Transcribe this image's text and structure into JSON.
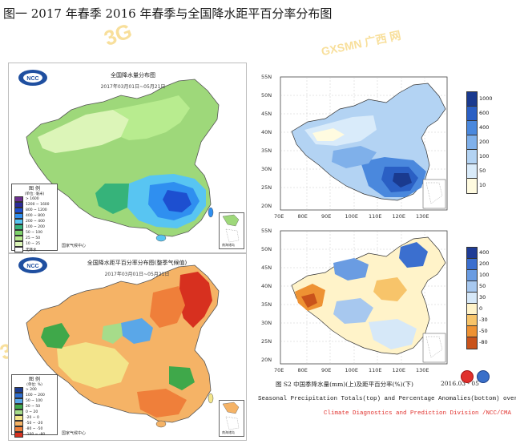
{
  "figure_title": "图一   2017 年春季 2016 年春季与全国降水距平百分率分布图",
  "watermarks": [
    "3G",
    "GXSMN 广西 网"
  ],
  "panel_a": {
    "logo": "NCC",
    "title": "全国降水量分布图",
    "date": "2017年03月01日~05月21日",
    "legend_title": "图  例",
    "legend_unit": "(单位: 毫米)",
    "legend": [
      {
        "label": "> 1600",
        "color": "#6b2f8f"
      },
      {
        "label": "1200 ~ 1600",
        "color": "#2b2c9a"
      },
      {
        "label": "800 ~ 1200",
        "color": "#1d4fd0"
      },
      {
        "label": "400 ~ 800",
        "color": "#2f8ff0"
      },
      {
        "label": "200 ~ 400",
        "color": "#58c5f2"
      },
      {
        "label": "100 ~ 200",
        "color": "#36b37a"
      },
      {
        "label": "50 ~ 100",
        "color": "#7ed36b"
      },
      {
        "label": "25 ~ 50",
        "color": "#b8ec8f"
      },
      {
        "label": "10 ~ 25",
        "color": "#dcf5b8"
      },
      {
        "label": "无降水",
        "color": "#ffffff"
      },
      {
        "label": "资料缺测",
        "color": "#d9d9d9"
      }
    ],
    "footer": "国家气候中心",
    "inset_label": "南海诸岛"
  },
  "panel_b": {
    "logo": "NCC",
    "title": "全国降水距平百分率分布图(整季气候值)",
    "date": "2017年03月01日~05月21日",
    "legend_title": "图  例",
    "legend_unit": "(单位: %)",
    "legend": [
      {
        "label": "> 200",
        "color": "#1e3d8f"
      },
      {
        "label": "100 ~ 200",
        "color": "#2f6fd0"
      },
      {
        "label": "50 ~ 100",
        "color": "#5aa7e8"
      },
      {
        "label": "20 ~ 50",
        "color": "#3fa84a"
      },
      {
        "label": "0 ~ 20",
        "color": "#a6dc8a"
      },
      {
        "label": "-20 ~ 0",
        "color": "#f3e58a"
      },
      {
        "label": "-50 ~ -20",
        "color": "#f5b366"
      },
      {
        "label": "-80 ~ -50",
        "color": "#ef7f3a"
      },
      {
        "label": "-100 ~ -80",
        "color": "#d7301f"
      }
    ],
    "footer": "国家气候中心",
    "inset_label": "南海诸岛"
  },
  "panel_c": {
    "lat_labels": [
      "55N",
      "50N",
      "45N",
      "40N",
      "35N",
      "30N",
      "25N",
      "20N"
    ],
    "lon_labels": [
      "70E",
      "80E",
      "90E",
      "100E",
      "110E",
      "120E",
      "130E"
    ],
    "colorbar": [
      {
        "label": "1000",
        "color": "#1a3a8f"
      },
      {
        "label": "600",
        "color": "#2a5fc4"
      },
      {
        "label": "400",
        "color": "#4a88dd"
      },
      {
        "label": "200",
        "color": "#7fb0ea"
      },
      {
        "label": "100",
        "color": "#b3d3f3"
      },
      {
        "label": "50",
        "color": "#d9ebfa"
      },
      {
        "label": "10",
        "color": "#fffbe0"
      }
    ]
  },
  "panel_d": {
    "lat_labels": [
      "55N",
      "50N",
      "45N",
      "40N",
      "35N",
      "30N",
      "25N",
      "20N"
    ],
    "lon_labels": [
      "70E",
      "80E",
      "90E",
      "100E",
      "110E",
      "120E",
      "130E"
    ],
    "colorbar": [
      {
        "label": "400",
        "color": "#1f3c96"
      },
      {
        "label": "200",
        "color": "#3b6fcf"
      },
      {
        "label": "100",
        "color": "#6a9ce2"
      },
      {
        "label": "50",
        "color": "#a7c8ef"
      },
      {
        "label": "30",
        "color": "#d6e8f8"
      },
      {
        "label": "0",
        "color": "#fff3c9"
      },
      {
        "label": "-30",
        "color": "#f7c46a"
      },
      {
        "label": "-50",
        "color": "#ee9233"
      },
      {
        "label": "-80",
        "color": "#c9531b"
      }
    ]
  },
  "caption": {
    "line1_cn": "图 S2  中国季降水量(mm)(上)及距平百分率(%)(下)",
    "line1_date": "2016.03 - 05",
    "line2": "Seasonal Precipitation Totals(top) and Percentage Anomalies(bottom) over China",
    "line3": "Climate Diagnostics and Prediction Division /NCC/CMA"
  },
  "colors": {
    "china_green": "#9ed87a",
    "china_blue": "#3a8be6",
    "anomaly_orange": "#f0a050",
    "anomaly_red": "#e04a2a",
    "anomaly_blue": "#6aa3e0"
  }
}
